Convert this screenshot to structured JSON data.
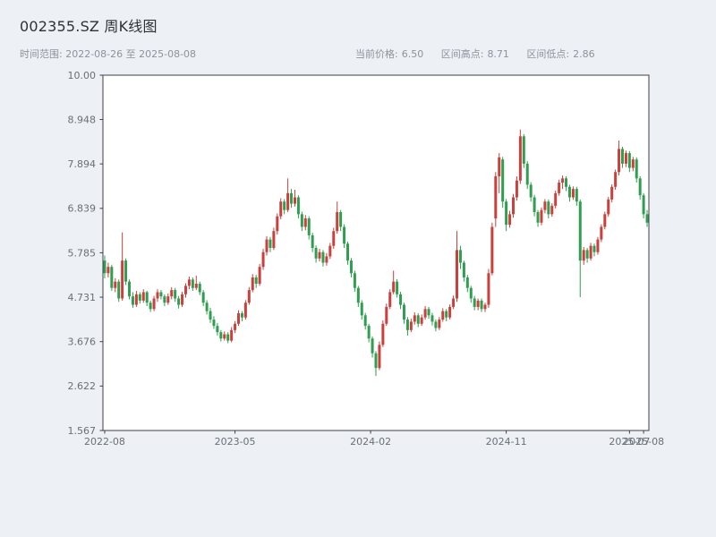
{
  "header": {
    "title": "002355.SZ 周K线图",
    "subtitle_left": "时间范围: 2022-08-26 至 2025-08-08",
    "stats": [
      {
        "label": "当前价格:",
        "value": "6.50"
      },
      {
        "label": "区间高点:",
        "value": "8.71"
      },
      {
        "label": "区间低点:",
        "value": "2.86"
      }
    ]
  },
  "chart_data": {
    "type": "candlestick",
    "symbol": "002355.SZ",
    "interval": "weekly",
    "title": "002355.SZ 周K线图",
    "date_range": [
      "2022-08-26",
      "2025-08-08"
    ],
    "current_price": 6.5,
    "range_high": 8.71,
    "range_low": 2.86,
    "y_range": [
      1.567,
      10.0
    ],
    "grid": false,
    "y_ticks": [
      {
        "label": "10.00",
        "value": 10.0
      },
      {
        "label": "8.948",
        "value": 8.948
      },
      {
        "label": "7.894",
        "value": 7.894
      },
      {
        "label": "6.839",
        "value": 6.839
      },
      {
        "label": "5.785",
        "value": 5.785
      },
      {
        "label": "4.731",
        "value": 4.731
      },
      {
        "label": "3.676",
        "value": 3.676
      },
      {
        "label": "2.622",
        "value": 2.622
      },
      {
        "label": "1.567",
        "value": 1.567
      }
    ],
    "x_ticks": [
      {
        "label": "2022-08",
        "week": 0
      },
      {
        "label": "2023-05",
        "week": 37
      },
      {
        "label": "2024-02",
        "week": 75.5
      },
      {
        "label": "2024-11",
        "week": 114
      },
      {
        "label": "2025-07",
        "week": 149
      },
      {
        "label": "2025-08",
        "week": 153
      }
    ],
    "colors": {
      "up": "#c9403d",
      "down": "#2f9e50",
      "border": "#3f3f46",
      "tick_text": "#6a6f78",
      "background": "#edf0f4",
      "plot_background": "#ffffff"
    },
    "candles_ohlc": [
      [
        5.6,
        5.72,
        5.18,
        5.3
      ],
      [
        5.3,
        5.55,
        5.2,
        5.45
      ],
      [
        5.45,
        5.5,
        4.88,
        4.95
      ],
      [
        4.95,
        5.18,
        4.85,
        5.1
      ],
      [
        5.1,
        5.15,
        4.62,
        4.7
      ],
      [
        4.7,
        6.27,
        4.65,
        5.6
      ],
      [
        5.6,
        5.65,
        5.02,
        5.1
      ],
      [
        5.1,
        5.15,
        4.68,
        4.75
      ],
      [
        4.75,
        4.85,
        4.48,
        4.55
      ],
      [
        4.55,
        4.88,
        4.5,
        4.8
      ],
      [
        4.8,
        4.85,
        4.58,
        4.65
      ],
      [
        4.65,
        4.92,
        4.6,
        4.85
      ],
      [
        4.85,
        4.88,
        4.52,
        4.6
      ],
      [
        4.6,
        4.65,
        4.38,
        4.45
      ],
      [
        4.45,
        4.76,
        4.4,
        4.7
      ],
      [
        4.7,
        4.92,
        4.62,
        4.85
      ],
      [
        4.85,
        4.9,
        4.68,
        4.75
      ],
      [
        4.75,
        4.8,
        4.52,
        4.6
      ],
      [
        4.6,
        4.82,
        4.55,
        4.75
      ],
      [
        4.75,
        4.97,
        4.68,
        4.9
      ],
      [
        4.9,
        4.95,
        4.62,
        4.7
      ],
      [
        4.7,
        4.76,
        4.46,
        4.55
      ],
      [
        4.55,
        4.86,
        4.5,
        4.8
      ],
      [
        4.8,
        5.06,
        4.72,
        5.0
      ],
      [
        5.0,
        5.22,
        4.92,
        5.15
      ],
      [
        5.15,
        5.2,
        4.88,
        4.95
      ],
      [
        4.95,
        5.24,
        4.9,
        5.05
      ],
      [
        5.05,
        5.1,
        4.78,
        4.85
      ],
      [
        4.85,
        4.9,
        4.52,
        4.6
      ],
      [
        4.6,
        4.66,
        4.32,
        4.4
      ],
      [
        4.4,
        4.48,
        4.12,
        4.2
      ],
      [
        4.2,
        4.28,
        3.98,
        4.05
      ],
      [
        4.05,
        4.12,
        3.82,
        3.9
      ],
      [
        3.9,
        3.95,
        3.68,
        3.75
      ],
      [
        3.75,
        3.92,
        3.7,
        3.85
      ],
      [
        3.85,
        3.9,
        3.64,
        3.7
      ],
      [
        3.7,
        4.02,
        3.66,
        3.95
      ],
      [
        3.95,
        4.16,
        3.88,
        4.1
      ],
      [
        4.1,
        4.42,
        4.05,
        4.35
      ],
      [
        4.35,
        4.4,
        4.16,
        4.25
      ],
      [
        4.25,
        4.66,
        4.2,
        4.6
      ],
      [
        4.6,
        4.97,
        4.55,
        4.9
      ],
      [
        4.9,
        5.28,
        4.85,
        5.2
      ],
      [
        5.2,
        5.26,
        4.95,
        5.05
      ],
      [
        5.05,
        5.52,
        5.0,
        5.45
      ],
      [
        5.45,
        5.88,
        5.38,
        5.8
      ],
      [
        5.8,
        6.18,
        5.72,
        6.1
      ],
      [
        6.1,
        6.16,
        5.8,
        5.9
      ],
      [
        5.9,
        6.38,
        5.85,
        6.3
      ],
      [
        6.3,
        6.72,
        6.22,
        6.65
      ],
      [
        6.65,
        7.08,
        6.58,
        7.0
      ],
      [
        7.0,
        7.06,
        6.7,
        6.8
      ],
      [
        6.8,
        7.55,
        6.75,
        7.2
      ],
      [
        7.2,
        7.3,
        6.85,
        6.95
      ],
      [
        6.95,
        7.28,
        6.88,
        7.1
      ],
      [
        7.1,
        7.15,
        6.6,
        6.7
      ],
      [
        6.7,
        6.76,
        6.3,
        6.4
      ],
      [
        6.4,
        6.68,
        6.32,
        6.6
      ],
      [
        6.6,
        6.65,
        6.1,
        6.2
      ],
      [
        6.2,
        6.26,
        5.8,
        5.9
      ],
      [
        5.9,
        5.96,
        5.55,
        5.65
      ],
      [
        5.65,
        5.88,
        5.58,
        5.8
      ],
      [
        5.8,
        5.85,
        5.46,
        5.55
      ],
      [
        5.55,
        5.78,
        5.48,
        5.7
      ],
      [
        5.7,
        6.02,
        5.64,
        5.95
      ],
      [
        5.95,
        6.38,
        5.88,
        6.3
      ],
      [
        6.3,
        7.0,
        6.24,
        6.75
      ],
      [
        6.75,
        6.8,
        6.3,
        6.4
      ],
      [
        6.4,
        6.46,
        5.9,
        6.0
      ],
      [
        6.0,
        6.05,
        5.5,
        5.6
      ],
      [
        5.6,
        5.66,
        5.2,
        5.3
      ],
      [
        5.3,
        5.36,
        4.86,
        4.95
      ],
      [
        4.95,
        5.0,
        4.5,
        4.6
      ],
      [
        4.6,
        4.66,
        4.2,
        4.3
      ],
      [
        4.3,
        4.36,
        3.96,
        4.05
      ],
      [
        4.05,
        4.1,
        3.66,
        3.75
      ],
      [
        3.75,
        3.8,
        3.3,
        3.4
      ],
      [
        3.4,
        3.45,
        2.86,
        3.05
      ],
      [
        3.05,
        3.68,
        3.0,
        3.6
      ],
      [
        3.6,
        4.18,
        3.55,
        4.1
      ],
      [
        4.1,
        4.58,
        4.05,
        4.5
      ],
      [
        4.5,
        4.92,
        4.45,
        4.85
      ],
      [
        4.85,
        5.36,
        4.8,
        5.1
      ],
      [
        5.1,
        5.16,
        4.72,
        4.8
      ],
      [
        4.8,
        4.86,
        4.45,
        4.55
      ],
      [
        4.55,
        4.6,
        4.1,
        4.2
      ],
      [
        4.2,
        4.26,
        3.82,
        3.95
      ],
      [
        3.95,
        4.22,
        3.9,
        4.15
      ],
      [
        4.15,
        4.37,
        4.08,
        4.3
      ],
      [
        4.3,
        4.35,
        4.02,
        4.1
      ],
      [
        4.1,
        4.32,
        4.05,
        4.25
      ],
      [
        4.25,
        4.52,
        4.2,
        4.45
      ],
      [
        4.45,
        4.5,
        4.22,
        4.3
      ],
      [
        4.3,
        4.36,
        4.06,
        4.15
      ],
      [
        4.15,
        4.2,
        3.92,
        4.0
      ],
      [
        4.0,
        4.26,
        3.95,
        4.2
      ],
      [
        4.2,
        4.47,
        4.15,
        4.4
      ],
      [
        4.4,
        4.45,
        4.16,
        4.25
      ],
      [
        4.25,
        4.56,
        4.2,
        4.5
      ],
      [
        4.5,
        4.77,
        4.45,
        4.7
      ],
      [
        4.7,
        6.3,
        4.62,
        5.85
      ],
      [
        5.85,
        5.95,
        5.4,
        5.55
      ],
      [
        5.55,
        5.6,
        5.1,
        5.2
      ],
      [
        5.2,
        5.26,
        4.85,
        4.95
      ],
      [
        4.95,
        5.0,
        4.6,
        4.7
      ],
      [
        4.7,
        4.76,
        4.42,
        4.5
      ],
      [
        4.5,
        4.7,
        4.42,
        4.65
      ],
      [
        4.65,
        4.7,
        4.38,
        4.45
      ],
      [
        4.45,
        4.6,
        4.38,
        4.55
      ],
      [
        4.55,
        5.4,
        4.48,
        5.3
      ],
      [
        5.3,
        6.5,
        5.25,
        6.4
      ],
      [
        6.6,
        7.7,
        6.4,
        7.6
      ],
      [
        7.6,
        8.15,
        7.2,
        8.05
      ],
      [
        8.0,
        8.06,
        6.85,
        7.0
      ],
      [
        7.0,
        7.06,
        6.3,
        6.45
      ],
      [
        6.45,
        6.78,
        6.38,
        6.7
      ],
      [
        6.7,
        7.18,
        6.62,
        7.1
      ],
      [
        7.1,
        7.6,
        7.02,
        7.5
      ],
      [
        7.5,
        8.71,
        7.42,
        8.55
      ],
      [
        8.55,
        8.6,
        7.8,
        7.9
      ],
      [
        7.9,
        7.96,
        7.3,
        7.4
      ],
      [
        7.4,
        7.46,
        7.0,
        7.1
      ],
      [
        7.1,
        7.16,
        6.65,
        6.75
      ],
      [
        6.75,
        6.8,
        6.4,
        6.5
      ],
      [
        6.5,
        6.86,
        6.44,
        6.8
      ],
      [
        6.8,
        7.06,
        6.72,
        7.0
      ],
      [
        7.0,
        7.05,
        6.6,
        6.7
      ],
      [
        6.7,
        6.96,
        6.64,
        6.9
      ],
      [
        6.9,
        7.26,
        6.84,
        7.2
      ],
      [
        7.2,
        7.52,
        7.14,
        7.45
      ],
      [
        7.45,
        7.62,
        7.3,
        7.55
      ],
      [
        7.55,
        7.6,
        7.25,
        7.35
      ],
      [
        7.35,
        7.4,
        7.0,
        7.1
      ],
      [
        7.1,
        7.36,
        7.04,
        7.3
      ],
      [
        7.3,
        7.35,
        6.9,
        7.0
      ],
      [
        7.0,
        7.05,
        4.73,
        5.6
      ],
      [
        5.6,
        5.92,
        5.5,
        5.85
      ],
      [
        5.85,
        5.9,
        5.55,
        5.65
      ],
      [
        5.65,
        6.02,
        5.6,
        5.95
      ],
      [
        5.95,
        6.0,
        5.7,
        5.8
      ],
      [
        5.8,
        6.16,
        5.74,
        6.1
      ],
      [
        6.1,
        6.46,
        6.04,
        6.4
      ],
      [
        6.4,
        6.76,
        6.34,
        6.7
      ],
      [
        6.7,
        7.11,
        6.64,
        7.05
      ],
      [
        7.05,
        7.41,
        6.98,
        7.35
      ],
      [
        7.35,
        7.76,
        7.28,
        7.7
      ],
      [
        7.7,
        8.45,
        7.62,
        8.25
      ],
      [
        8.25,
        8.3,
        7.8,
        7.9
      ],
      [
        7.9,
        8.21,
        7.82,
        8.15
      ],
      [
        8.15,
        8.2,
        7.7,
        7.8
      ],
      [
        7.8,
        8.06,
        7.72,
        8.0
      ],
      [
        8.0,
        8.05,
        7.45,
        7.55
      ],
      [
        7.55,
        7.6,
        7.05,
        7.15
      ],
      [
        7.15,
        7.2,
        6.6,
        6.7
      ],
      [
        6.7,
        6.8,
        6.4,
        6.5
      ]
    ]
  }
}
